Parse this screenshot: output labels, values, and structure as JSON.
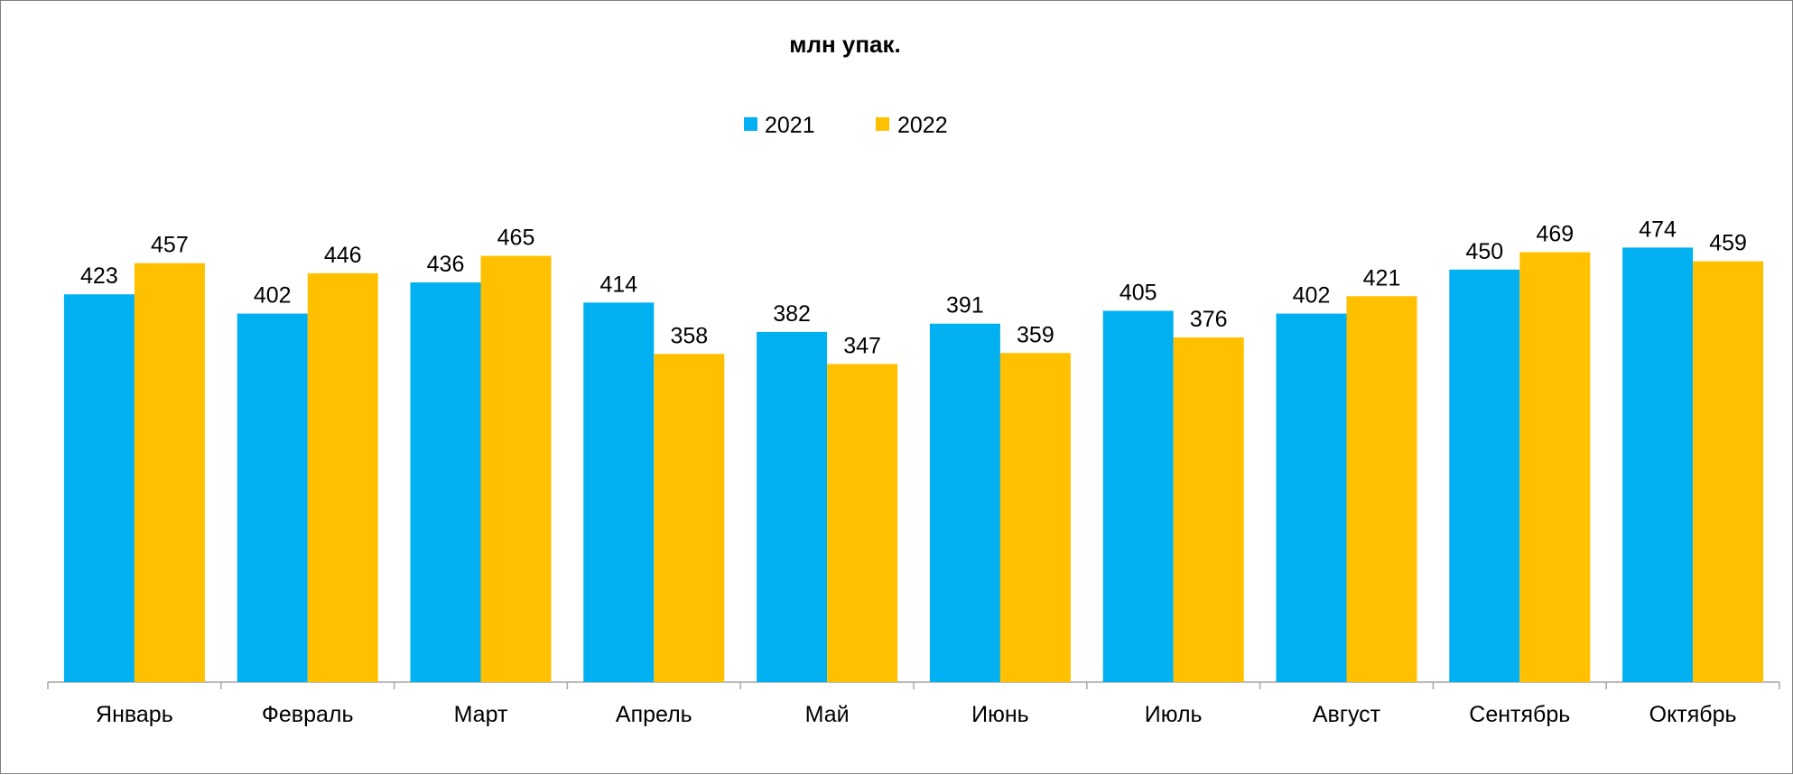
{
  "chart_data": {
    "type": "bar",
    "title": "млн упак.",
    "categories": [
      "Январь",
      "Февраль",
      "Март",
      "Апрель",
      "Май",
      "Июнь",
      "Июль",
      "Август",
      "Сентябрь",
      "Октябрь"
    ],
    "series": [
      {
        "name": "2021",
        "color": "#00b0f0",
        "values": [
          423,
          402,
          436,
          414,
          382,
          391,
          405,
          402,
          450,
          474
        ]
      },
      {
        "name": "2022",
        "color": "#ffc000",
        "values": [
          457,
          446,
          465,
          358,
          347,
          359,
          376,
          421,
          469,
          459
        ]
      }
    ],
    "ylim": [
      0,
      500
    ],
    "grid": false,
    "legend_position": "top"
  }
}
